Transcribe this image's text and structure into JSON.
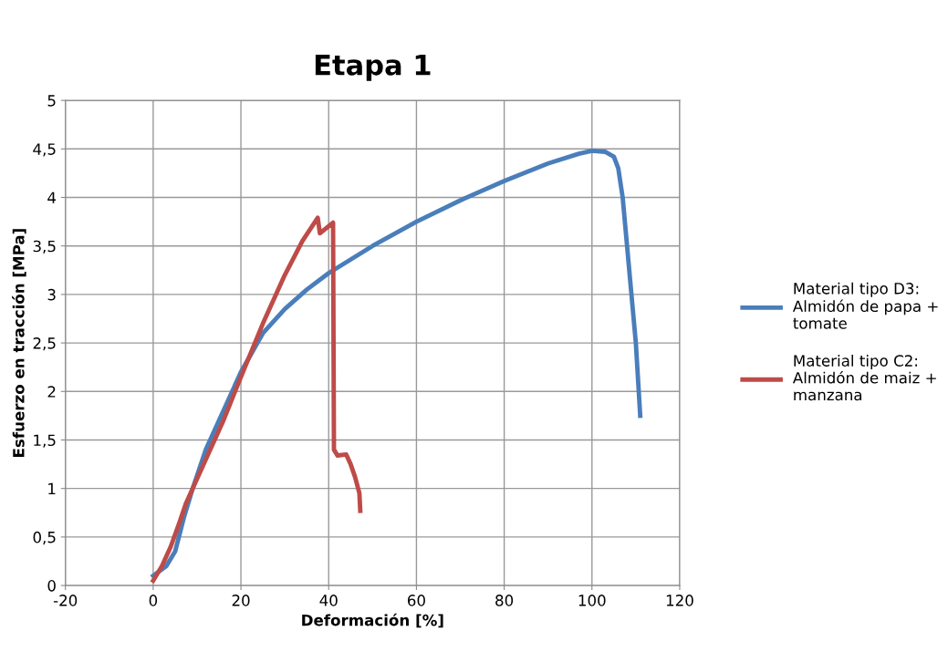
{
  "chart_data": {
    "type": "line",
    "title": "Etapa 1",
    "xlabel": "Deformación [%]",
    "ylabel": "Esfuerzo en tracción [MPa]",
    "xlim": [
      -20,
      120
    ],
    "xticks": [
      -20,
      0,
      20,
      40,
      60,
      80,
      100,
      120
    ],
    "ylim": [
      0,
      5
    ],
    "yticks": [
      0,
      {
        "value": 0.5,
        "label": "0,5"
      },
      1,
      {
        "value": 1.5,
        "label": "1,5"
      },
      2,
      {
        "value": 2.5,
        "label": "2,5"
      },
      3,
      {
        "value": 3.5,
        "label": "3,5"
      },
      4,
      {
        "value": 4.5,
        "label": "4,5"
      },
      5
    ],
    "grid": true,
    "legend": "right",
    "marker": "none",
    "line_style": "solid",
    "series": [
      {
        "name": "Material tipo D3: Almidón de papa + tomate",
        "color": "#4a7ebb",
        "x": [
          0,
          3,
          5,
          7,
          9,
          12,
          14,
          17,
          20,
          25,
          30,
          35,
          40,
          50,
          60,
          70,
          80,
          90,
          97,
          100,
          103,
          105,
          106,
          107,
          108,
          109,
          110,
          111
        ],
        "values": [
          0.1,
          0.2,
          0.35,
          0.7,
          1.0,
          1.4,
          1.6,
          1.9,
          2.2,
          2.6,
          2.85,
          3.05,
          3.22,
          3.5,
          3.75,
          3.97,
          4.17,
          4.35,
          4.45,
          4.48,
          4.47,
          4.42,
          4.3,
          4.0,
          3.5,
          3.0,
          2.5,
          1.75
        ]
      },
      {
        "name": "Material tipo C2: Almidón de maiz + manzana",
        "color": "#be4b48",
        "x": [
          0,
          2,
          4,
          6,
          7.5,
          9,
          12,
          16,
          20,
          25,
          30,
          34,
          37.5,
          38,
          41,
          41.2,
          42,
          44,
          45,
          46,
          47,
          47.2
        ],
        "values": [
          0.05,
          0.2,
          0.4,
          0.65,
          0.85,
          1.0,
          1.3,
          1.7,
          2.15,
          2.7,
          3.2,
          3.55,
          3.79,
          3.63,
          3.74,
          1.4,
          1.34,
          1.35,
          1.25,
          1.12,
          0.95,
          0.77
        ]
      }
    ]
  }
}
